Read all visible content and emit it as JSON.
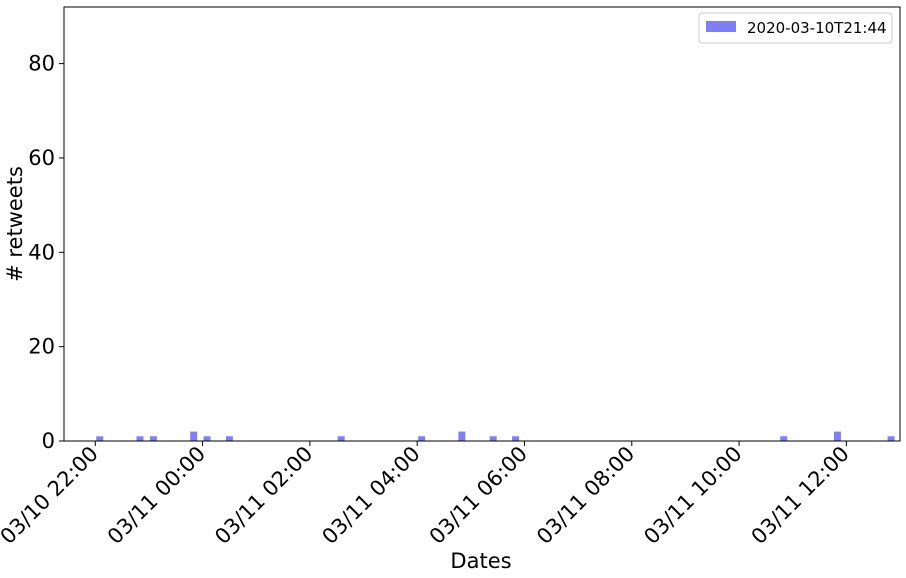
{
  "chart_data": {
    "type": "bar",
    "xlabel": "Dates",
    "ylabel": "# retweets",
    "ylim": [
      0,
      92
    ],
    "yticks": [
      0,
      20,
      40,
      60,
      80
    ],
    "xlim": [
      "2020-03-10T21:25",
      "2020-03-11T13:00"
    ],
    "xticks": [
      {
        "t": "2020-03-10T22:00",
        "label": "03/10 22:00"
      },
      {
        "t": "2020-03-11T00:00",
        "label": "03/11 00:00"
      },
      {
        "t": "2020-03-11T02:00",
        "label": "03/11 02:00"
      },
      {
        "t": "2020-03-11T04:00",
        "label": "03/11 04:00"
      },
      {
        "t": "2020-03-11T06:00",
        "label": "03/11 06:00"
      },
      {
        "t": "2020-03-11T08:00",
        "label": "03/11 08:00"
      },
      {
        "t": "2020-03-11T10:00",
        "label": "03/11 10:00"
      },
      {
        "t": "2020-03-11T12:00",
        "label": "03/11 12:00"
      }
    ],
    "legend": {
      "position": "top-right"
    },
    "grid": false,
    "series": [
      {
        "name": "2020-03-10T21:44",
        "color": "#7f7ff5",
        "points": [
          {
            "x": "2020-03-10T22:05",
            "y": 1
          },
          {
            "x": "2020-03-10T22:50",
            "y": 1
          },
          {
            "x": "2020-03-10T23:05",
            "y": 1
          },
          {
            "x": "2020-03-10T23:50",
            "y": 2
          },
          {
            "x": "2020-03-11T00:05",
            "y": 1
          },
          {
            "x": "2020-03-11T00:30",
            "y": 1
          },
          {
            "x": "2020-03-11T02:35",
            "y": 1
          },
          {
            "x": "2020-03-11T04:05",
            "y": 1
          },
          {
            "x": "2020-03-11T04:50",
            "y": 2
          },
          {
            "x": "2020-03-11T05:25",
            "y": 1
          },
          {
            "x": "2020-03-11T05:50",
            "y": 1
          },
          {
            "x": "2020-03-11T10:50",
            "y": 1
          },
          {
            "x": "2020-03-11T11:50",
            "y": 2
          },
          {
            "x": "2020-03-11T12:50",
            "y": 1
          }
        ]
      }
    ]
  }
}
